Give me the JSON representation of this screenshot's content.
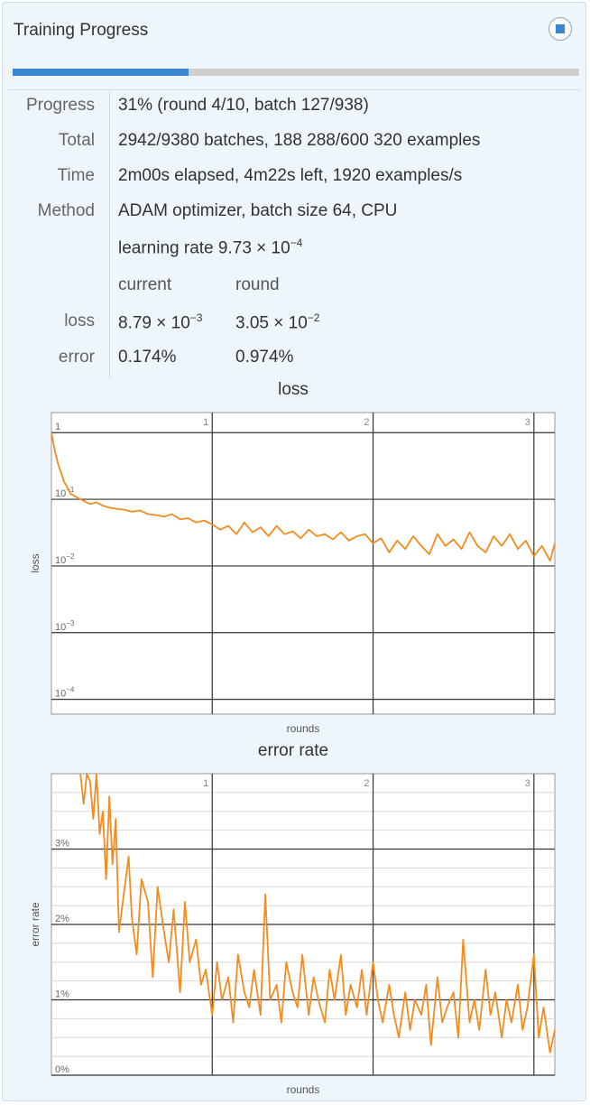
{
  "header": {
    "title": "Training Progress",
    "stop_icon": "stop-icon"
  },
  "progress": {
    "fraction": 0.31
  },
  "rows": {
    "progress": {
      "label": "Progress",
      "value": "31% (round 4/10, batch 127/938)"
    },
    "total": {
      "label": "Total",
      "value": "2942/9380 batches, 188 288/600 320 examples"
    },
    "time": {
      "label": "Time",
      "value": "2m00s elapsed, 4m22s left, 1920 examples/s"
    },
    "method": {
      "label": "Method",
      "value": "ADAM optimizer, batch size 64, CPU"
    },
    "lr": {
      "prefix": "learning rate 9.73 × 10",
      "exp": "−4"
    }
  },
  "table": {
    "col_current": "current",
    "col_round": "round",
    "loss": {
      "label": "loss",
      "current_mant": "8.79 × 10",
      "current_exp": "−3",
      "round_mant": "3.05 × 10",
      "round_exp": "−2"
    },
    "error": {
      "label": "error",
      "current": "0.174%",
      "round": "0.974%"
    }
  },
  "chart_data": [
    {
      "type": "line",
      "title": "loss",
      "xlabel": "rounds",
      "ylabel": "loss",
      "yscale": "log",
      "ylim": [
        6e-05,
        2
      ],
      "xlim": [
        0,
        3.13
      ],
      "x_ticks": [
        "1",
        "2",
        "3"
      ],
      "y_ticks": [
        {
          "value": 1,
          "label": "1"
        },
        {
          "value": 0.1,
          "label": "10",
          "exp": "−1"
        },
        {
          "value": 0.01,
          "label": "10",
          "exp": "−2"
        },
        {
          "value": 0.001,
          "label": "10",
          "exp": "−3"
        },
        {
          "value": 0.0001,
          "label": "10",
          "exp": "−4"
        }
      ],
      "color": "#f28c1e",
      "series": [
        {
          "x": [
            0,
            0.02,
            0.04,
            0.06,
            0.08,
            0.1,
            0.12,
            0.15,
            0.18,
            0.2,
            0.24,
            0.28,
            0.32,
            0.36,
            0.4,
            0.45,
            0.5,
            0.55,
            0.6,
            0.65,
            0.7,
            0.75,
            0.8,
            0.85,
            0.9,
            0.95,
            1.0,
            1.05,
            1.1,
            1.15,
            1.2,
            1.25,
            1.3,
            1.35,
            1.4,
            1.45,
            1.5,
            1.55,
            1.6,
            1.65,
            1.7,
            1.75,
            1.8,
            1.85,
            1.9,
            1.95,
            2.0,
            2.05,
            2.1,
            2.15,
            2.2,
            2.25,
            2.3,
            2.35,
            2.4,
            2.45,
            2.5,
            2.55,
            2.6,
            2.65,
            2.7,
            2.75,
            2.8,
            2.85,
            2.9,
            2.95,
            3.0,
            3.05,
            3.1,
            3.13
          ],
          "y": [
            1.0,
            0.55,
            0.35,
            0.25,
            0.18,
            0.15,
            0.12,
            0.11,
            0.1,
            0.095,
            0.085,
            0.09,
            0.08,
            0.075,
            0.072,
            0.07,
            0.065,
            0.068,
            0.06,
            0.058,
            0.055,
            0.06,
            0.05,
            0.052,
            0.045,
            0.048,
            0.042,
            0.035,
            0.04,
            0.03,
            0.045,
            0.032,
            0.038,
            0.028,
            0.04,
            0.03,
            0.033,
            0.026,
            0.035,
            0.028,
            0.03,
            0.025,
            0.032,
            0.024,
            0.028,
            0.03,
            0.022,
            0.026,
            0.016,
            0.024,
            0.018,
            0.028,
            0.02,
            0.015,
            0.03,
            0.02,
            0.025,
            0.018,
            0.032,
            0.02,
            0.016,
            0.028,
            0.02,
            0.03,
            0.018,
            0.024,
            0.014,
            0.02,
            0.012,
            0.022
          ]
        }
      ]
    },
    {
      "type": "line",
      "title": "error rate",
      "xlabel": "rounds",
      "ylabel": "error rate",
      "ylim": [
        0,
        4
      ],
      "xlim": [
        0,
        3.13
      ],
      "x_ticks": [
        "1",
        "2",
        "3"
      ],
      "y_ticks": [
        {
          "value": 0,
          "label": "0%"
        },
        {
          "value": 1,
          "label": "1%"
        },
        {
          "value": 2,
          "label": "2%"
        },
        {
          "value": 3,
          "label": "3%"
        }
      ],
      "color": "#f28c1e",
      "series": [
        {
          "x": [
            0.18,
            0.2,
            0.22,
            0.24,
            0.26,
            0.28,
            0.3,
            0.32,
            0.34,
            0.36,
            0.38,
            0.4,
            0.42,
            0.45,
            0.48,
            0.5,
            0.53,
            0.56,
            0.6,
            0.63,
            0.66,
            0.7,
            0.73,
            0.76,
            0.8,
            0.83,
            0.86,
            0.9,
            0.93,
            0.96,
            1.0,
            1.03,
            1.06,
            1.1,
            1.13,
            1.16,
            1.2,
            1.23,
            1.26,
            1.3,
            1.33,
            1.36,
            1.4,
            1.43,
            1.46,
            1.5,
            1.53,
            1.56,
            1.6,
            1.63,
            1.66,
            1.7,
            1.73,
            1.76,
            1.8,
            1.83,
            1.86,
            1.9,
            1.93,
            1.96,
            2.0,
            2.03,
            2.06,
            2.1,
            2.13,
            2.16,
            2.2,
            2.23,
            2.26,
            2.3,
            2.33,
            2.36,
            2.4,
            2.43,
            2.46,
            2.5,
            2.53,
            2.56,
            2.6,
            2.63,
            2.66,
            2.7,
            2.73,
            2.76,
            2.8,
            2.83,
            2.86,
            2.9,
            2.93,
            2.96,
            3.0,
            3.03,
            3.06,
            3.1,
            3.13
          ],
          "y": [
            4.0,
            3.6,
            4.0,
            3.9,
            3.4,
            4.0,
            3.2,
            3.5,
            2.6,
            3.7,
            2.8,
            3.4,
            1.9,
            2.4,
            2.9,
            2.1,
            1.6,
            2.6,
            2.3,
            1.3,
            2.5,
            1.9,
            1.5,
            2.2,
            1.1,
            2.3,
            1.5,
            1.8,
            1.2,
            1.4,
            0.8,
            1.5,
            1.0,
            1.3,
            0.7,
            1.6,
            1.1,
            0.9,
            1.4,
            0.8,
            2.4,
            1.0,
            1.2,
            0.7,
            1.5,
            1.1,
            0.9,
            1.6,
            0.8,
            1.3,
            1.0,
            0.7,
            1.4,
            1.0,
            1.6,
            0.8,
            1.2,
            0.9,
            1.4,
            0.8,
            1.5,
            1.0,
            0.7,
            1.2,
            0.8,
            0.5,
            1.1,
            0.6,
            1.0,
            0.8,
            1.2,
            0.4,
            1.3,
            0.7,
            0.9,
            1.1,
            0.5,
            1.8,
            0.7,
            1.0,
            0.6,
            1.4,
            0.8,
            1.1,
            0.5,
            1.0,
            0.7,
            1.2,
            0.6,
            0.9,
            1.6,
            0.5,
            0.9,
            0.3,
            0.6
          ]
        }
      ]
    }
  ]
}
